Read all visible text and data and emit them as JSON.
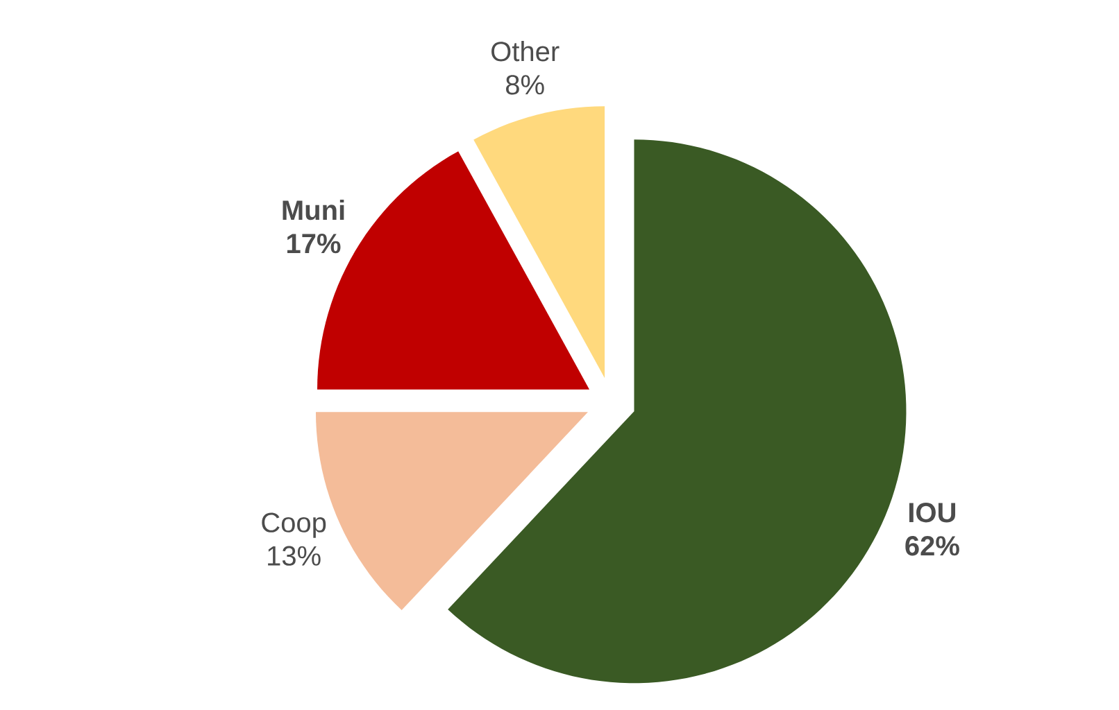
{
  "chart_data": {
    "type": "pie",
    "categories": [
      "**IOU**",
      "Coop",
      "**Muni**",
      "Other"
    ],
    "values": [
      62,
      13,
      17,
      8
    ],
    "value_labels": [
      "**62%**",
      "13%",
      "**17%**",
      "8%"
    ],
    "colors": [
      "#3a5a24",
      "#f4bc99",
      "#c00000",
      "#ffd97d"
    ]
  }
}
